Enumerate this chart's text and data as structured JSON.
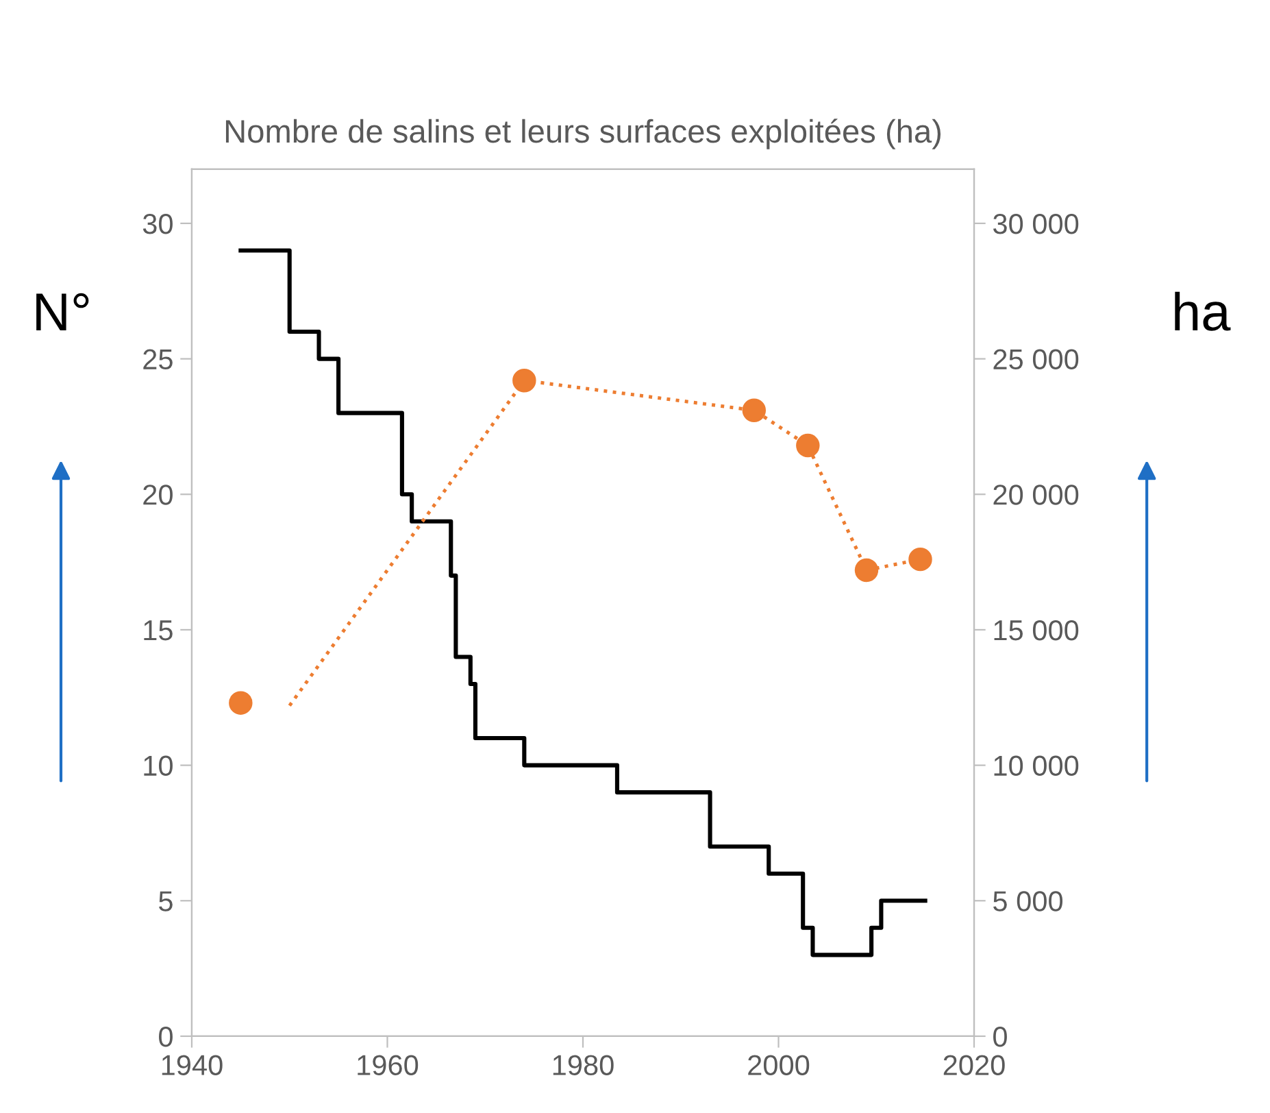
{
  "chart_data": {
    "type": "step",
    "title": "Nombre de salins et leurs surfaces exploitées (ha)",
    "ylabel": "N°",
    "y2label": "ha",
    "series": [
      {
        "color": "#000000",
        "x": [
          1945,
          1950,
          1953,
          1955,
          1961.5,
          1962.5,
          1966.5,
          1967,
          1968.5,
          1969,
          1974,
          1983.5,
          1993,
          1999,
          2002.5,
          2003.5,
          2009.5,
          2010.5,
          2015
        ],
        "values": [
          29,
          26,
          25,
          23,
          20,
          19,
          17,
          14,
          13,
          11,
          10,
          9,
          7,
          6,
          4,
          3,
          4,
          5,
          5
        ]
      },
      {
        "type": "line",
        "axis": "y2",
        "color": "#ed7d31",
        "line_style": "dotted",
        "marker": "none",
        "x": [
          1950,
          1974,
          1997.5,
          2003,
          2009,
          2014.5
        ],
        "values": [
          12200,
          24200,
          23100,
          21800,
          17200,
          17600
        ]
      },
      {
        "type": "scatter",
        "axis": "y2",
        "color": "#ed7d31",
        "marker": "circle",
        "x": [
          1945,
          1974,
          1997.5,
          2003,
          2009,
          2014.5
        ],
        "values": [
          12300,
          24200,
          23100,
          21800,
          17200,
          17600
        ]
      }
    ],
    "xlim": [
      1940,
      2020
    ],
    "xticks": [
      1940,
      1960,
      1980,
      2000,
      2020
    ],
    "ylim": [
      0,
      32
    ],
    "yticks": [
      0,
      5,
      10,
      15,
      20,
      25,
      30
    ],
    "y2lim": [
      0,
      32000
    ],
    "y2ticks": [
      0,
      {
        "value": 5000,
        "label": "5 000"
      },
      {
        "value": 10000,
        "label": "10 000"
      },
      {
        "value": 15000,
        "label": "15 000"
      },
      {
        "value": 20000,
        "label": "20 000"
      },
      {
        "value": 25000,
        "label": "25 000"
      },
      {
        "value": 30000,
        "label": "30 000"
      }
    ],
    "grid": false,
    "legend": false
  }
}
